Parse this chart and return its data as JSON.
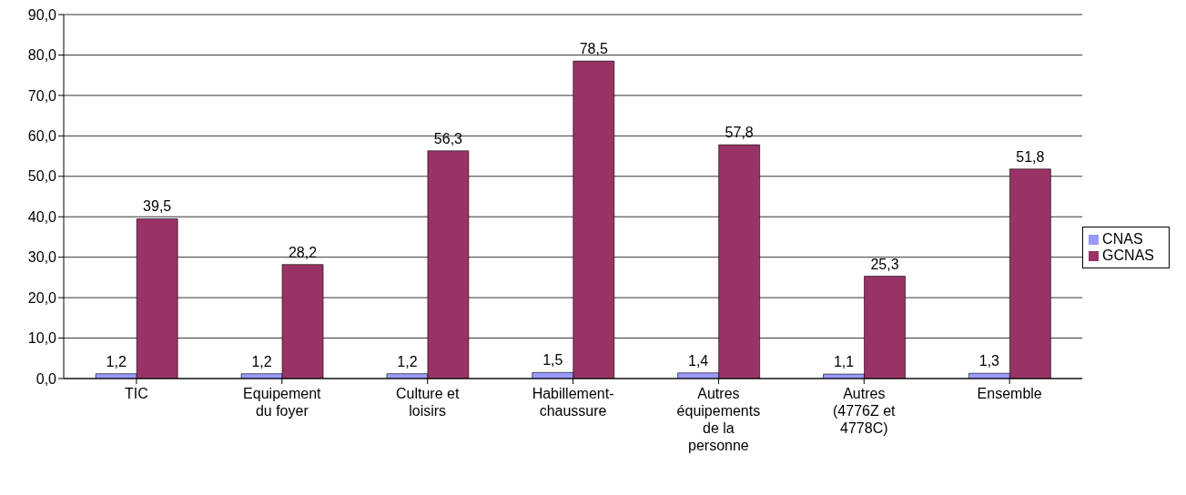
{
  "chart_data": {
    "type": "bar",
    "categories": [
      "TIC",
      "Equipement du foyer",
      "Culture et loisirs",
      "Habillement-chaussure",
      "Autres équipements de la personne",
      "Autres (4776Z et 4778C)",
      "Ensemble"
    ],
    "series": [
      {
        "name": "CNAS",
        "color": "#9999ff",
        "values": [
          1.2,
          1.2,
          1.2,
          1.5,
          1.4,
          1.1,
          1.3
        ],
        "value_labels": [
          "1,2",
          "1,2",
          "1,2",
          "1,5",
          "1,4",
          "1,1",
          "1,3"
        ]
      },
      {
        "name": "GCNAS",
        "color": "#993366",
        "values": [
          39.5,
          28.2,
          56.3,
          78.5,
          57.8,
          25.3,
          51.8
        ],
        "value_labels": [
          "39,5",
          "28,2",
          "56,3",
          "78,5",
          "57,8",
          "25,3",
          "51,8"
        ]
      }
    ],
    "ylim": [
      0,
      90
    ],
    "yticks": [
      {
        "value": 0,
        "label": "0,0"
      },
      {
        "value": 10,
        "label": "10,0"
      },
      {
        "value": 20,
        "label": "20,0"
      },
      {
        "value": 30,
        "label": "30,0"
      },
      {
        "value": 40,
        "label": "40,0"
      },
      {
        "value": 50,
        "label": "50,0"
      },
      {
        "value": 60,
        "label": "60,0"
      },
      {
        "value": 70,
        "label": "70,0"
      },
      {
        "value": 80,
        "label": "80,0"
      },
      {
        "value": 90,
        "label": "90,0"
      }
    ],
    "grid": "y",
    "legend": "right"
  }
}
